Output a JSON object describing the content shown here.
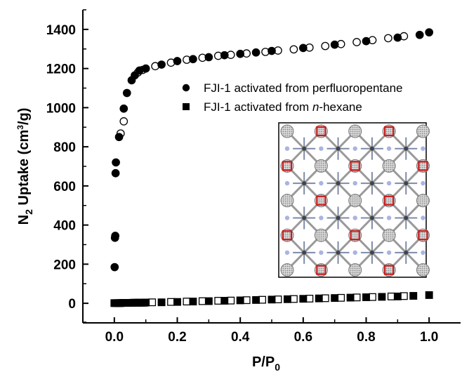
{
  "chart_data": {
    "type": "scatter",
    "x_axis": {
      "label_main": "P/P",
      "label_sub": "0",
      "range": [
        -0.1,
        1.1
      ],
      "ticks": [
        0.0,
        0.2,
        0.4,
        0.6,
        0.8,
        1.0
      ],
      "tick_labels": [
        "0.0",
        "0.2",
        "0.4",
        "0.6",
        "0.8",
        "1.0"
      ]
    },
    "y_axis": {
      "label_pre": "N",
      "label_pre_sub": "2",
      "label_mid": " Uptake (cm",
      "label_sup": "3",
      "label_post": "/g)",
      "range": [
        -100,
        1500
      ],
      "ticks": [
        0,
        200,
        400,
        600,
        800,
        1000,
        1200,
        1400
      ],
      "tick_labels": [
        "0",
        "200",
        "400",
        "600",
        "800",
        "1000",
        "1200",
        "1400"
      ]
    },
    "legend": {
      "position": "upper-right",
      "entries": [
        {
          "marker": "circle",
          "text": "FJI-1 activated from perfluoropentane"
        },
        {
          "marker": "square",
          "text_pre": "FJI-1 activated from ",
          "text_italic": "n",
          "text_post": "-hexane"
        }
      ]
    },
    "inset": {
      "description_icon": "crystal-structure-image",
      "position": "lower-right"
    },
    "series": [
      {
        "marker": "circle",
        "adsorption": [
          [
            0.001,
            185
          ],
          [
            0.002,
            335
          ],
          [
            0.003,
            345
          ],
          [
            0.004,
            665
          ],
          [
            0.005,
            720
          ],
          [
            0.015,
            850
          ],
          [
            0.03,
            995
          ],
          [
            0.04,
            1075
          ],
          [
            0.055,
            1140
          ],
          [
            0.065,
            1165
          ],
          [
            0.08,
            1190
          ],
          [
            0.1,
            1200
          ],
          [
            0.15,
            1220
          ],
          [
            0.2,
            1238
          ],
          [
            0.25,
            1248
          ],
          [
            0.3,
            1258
          ],
          [
            0.35,
            1268
          ],
          [
            0.4,
            1275
          ],
          [
            0.45,
            1282
          ],
          [
            0.5,
            1290
          ],
          [
            0.6,
            1305
          ],
          [
            0.7,
            1322
          ],
          [
            0.8,
            1340
          ],
          [
            0.9,
            1358
          ],
          [
            0.97,
            1372
          ],
          [
            1.0,
            1385
          ]
        ],
        "desorption": [
          [
            0.02,
            868
          ],
          [
            0.03,
            930
          ],
          [
            0.075,
            1180
          ],
          [
            0.09,
            1193
          ],
          [
            0.13,
            1212
          ],
          [
            0.18,
            1230
          ],
          [
            0.23,
            1245
          ],
          [
            0.28,
            1255
          ],
          [
            0.33,
            1265
          ],
          [
            0.37,
            1270
          ],
          [
            0.42,
            1277
          ],
          [
            0.48,
            1285
          ],
          [
            0.52,
            1292
          ],
          [
            0.57,
            1298
          ],
          [
            0.62,
            1307
          ],
          [
            0.67,
            1315
          ],
          [
            0.72,
            1325
          ],
          [
            0.77,
            1335
          ],
          [
            0.82,
            1345
          ],
          [
            0.87,
            1355
          ],
          [
            0.92,
            1365
          ]
        ]
      },
      {
        "marker": "square",
        "adsorption": [
          [
            0.0,
            1
          ],
          [
            0.005,
            1
          ],
          [
            0.01,
            1
          ],
          [
            0.015,
            1
          ],
          [
            0.02,
            1
          ],
          [
            0.025,
            2
          ],
          [
            0.03,
            2
          ],
          [
            0.035,
            2
          ],
          [
            0.04,
            2
          ],
          [
            0.045,
            2
          ],
          [
            0.05,
            2
          ],
          [
            0.055,
            2
          ],
          [
            0.06,
            3
          ],
          [
            0.065,
            3
          ],
          [
            0.07,
            3
          ],
          [
            0.075,
            3
          ],
          [
            0.08,
            3
          ],
          [
            0.085,
            3
          ],
          [
            0.09,
            3
          ],
          [
            0.095,
            3
          ],
          [
            0.1,
            4
          ],
          [
            0.15,
            5
          ],
          [
            0.2,
            7
          ],
          [
            0.25,
            9
          ],
          [
            0.3,
            11
          ],
          [
            0.35,
            13
          ],
          [
            0.4,
            15
          ],
          [
            0.45,
            17
          ],
          [
            0.5,
            19
          ],
          [
            0.55,
            21
          ],
          [
            0.6,
            23
          ],
          [
            0.65,
            25
          ],
          [
            0.7,
            27
          ],
          [
            0.75,
            29
          ],
          [
            0.8,
            31
          ],
          [
            0.85,
            33
          ],
          [
            0.9,
            35
          ],
          [
            0.95,
            38
          ],
          [
            1.0,
            42
          ]
        ],
        "desorption": [
          [
            0.12,
            5
          ],
          [
            0.18,
            7
          ],
          [
            0.23,
            9
          ],
          [
            0.28,
            11
          ],
          [
            0.33,
            13
          ],
          [
            0.37,
            14
          ],
          [
            0.42,
            16
          ],
          [
            0.47,
            18
          ],
          [
            0.52,
            20
          ],
          [
            0.57,
            22
          ],
          [
            0.62,
            24
          ],
          [
            0.67,
            26
          ],
          [
            0.72,
            28
          ],
          [
            0.77,
            30
          ],
          [
            0.82,
            32
          ],
          [
            0.88,
            35
          ],
          [
            0.92,
            37
          ]
        ]
      }
    ]
  }
}
